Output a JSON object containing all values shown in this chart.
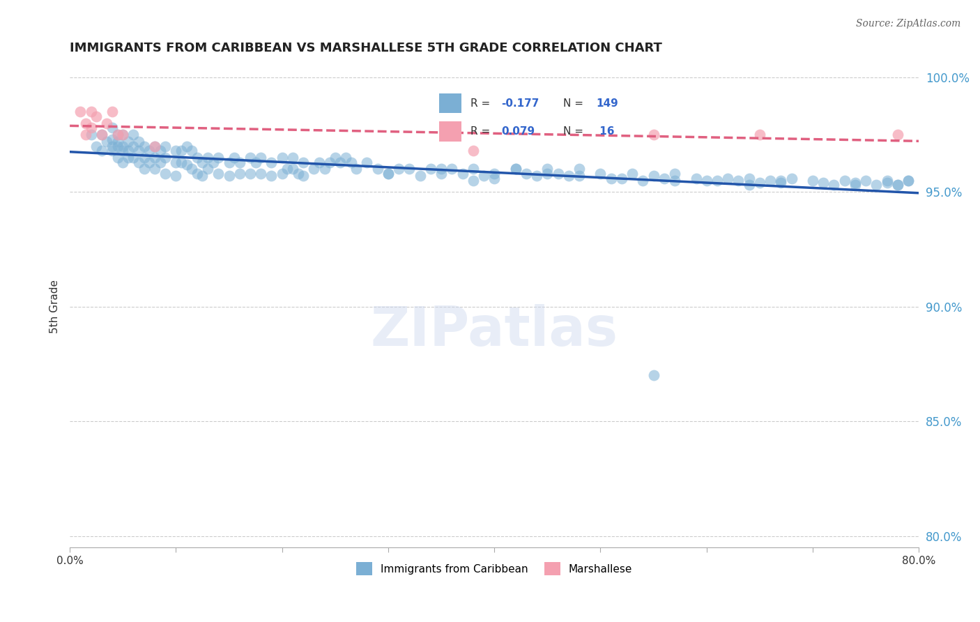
{
  "title": "IMMIGRANTS FROM CARIBBEAN VS MARSHALLESE 5TH GRADE CORRELATION CHART",
  "source_text": "Source: ZipAtlas.com",
  "ylabel": "5th Grade",
  "xlim": [
    0.0,
    0.8
  ],
  "ylim": [
    0.795,
    1.005
  ],
  "xticks": [
    0.0,
    0.1,
    0.2,
    0.3,
    0.4,
    0.5,
    0.6,
    0.7,
    0.8
  ],
  "xticklabels": [
    "0.0%",
    "",
    "",
    "",
    "",
    "",
    "",
    "",
    "80.0%"
  ],
  "yticks": [
    0.8,
    0.85,
    0.9,
    0.95,
    1.0
  ],
  "yticklabels": [
    "80.0%",
    "85.0%",
    "90.0%",
    "95.0%",
    "100.0%"
  ],
  "grid_color": "#cccccc",
  "background_color": "#ffffff",
  "blue_color": "#7bafd4",
  "blue_line_color": "#2255aa",
  "pink_color": "#f4a0b0",
  "pink_line_color": "#e06080",
  "blue_R": -0.177,
  "blue_N": 149,
  "pink_R": 0.079,
  "pink_N": 16,
  "blue_scatter_x": [
    0.02,
    0.025,
    0.03,
    0.03,
    0.035,
    0.04,
    0.04,
    0.04,
    0.04,
    0.045,
    0.045,
    0.045,
    0.045,
    0.05,
    0.05,
    0.05,
    0.05,
    0.055,
    0.055,
    0.055,
    0.06,
    0.06,
    0.06,
    0.065,
    0.065,
    0.065,
    0.07,
    0.07,
    0.07,
    0.075,
    0.075,
    0.08,
    0.08,
    0.08,
    0.085,
    0.085,
    0.09,
    0.09,
    0.09,
    0.1,
    0.1,
    0.1,
    0.105,
    0.105,
    0.11,
    0.11,
    0.115,
    0.115,
    0.12,
    0.12,
    0.125,
    0.125,
    0.13,
    0.13,
    0.135,
    0.14,
    0.14,
    0.15,
    0.15,
    0.155,
    0.16,
    0.16,
    0.17,
    0.17,
    0.175,
    0.18,
    0.18,
    0.19,
    0.19,
    0.2,
    0.2,
    0.205,
    0.21,
    0.21,
    0.215,
    0.22,
    0.22,
    0.23,
    0.235,
    0.24,
    0.245,
    0.25,
    0.255,
    0.26,
    0.265,
    0.27,
    0.28,
    0.29,
    0.3,
    0.31,
    0.32,
    0.33,
    0.34,
    0.35,
    0.36,
    0.37,
    0.38,
    0.39,
    0.4,
    0.42,
    0.43,
    0.44,
    0.45,
    0.46,
    0.47,
    0.48,
    0.5,
    0.52,
    0.53,
    0.54,
    0.55,
    0.56,
    0.57,
    0.59,
    0.6,
    0.62,
    0.63,
    0.64,
    0.65,
    0.66,
    0.67,
    0.68,
    0.7,
    0.72,
    0.73,
    0.74,
    0.75,
    0.76,
    0.77,
    0.78,
    0.79,
    0.55,
    0.38,
    0.42,
    0.45,
    0.48,
    0.51,
    0.57,
    0.61,
    0.64,
    0.67,
    0.71,
    0.74,
    0.77,
    0.78,
    0.79,
    0.3,
    0.35,
    0.4
  ],
  "blue_scatter_y": [
    0.975,
    0.97,
    0.975,
    0.968,
    0.972,
    0.968,
    0.973,
    0.97,
    0.978,
    0.975,
    0.972,
    0.97,
    0.965,
    0.975,
    0.97,
    0.968,
    0.963,
    0.972,
    0.968,
    0.965,
    0.975,
    0.97,
    0.965,
    0.972,
    0.968,
    0.963,
    0.97,
    0.965,
    0.96,
    0.968,
    0.963,
    0.97,
    0.965,
    0.96,
    0.968,
    0.963,
    0.97,
    0.965,
    0.958,
    0.968,
    0.963,
    0.957,
    0.968,
    0.963,
    0.97,
    0.962,
    0.968,
    0.96,
    0.965,
    0.958,
    0.963,
    0.957,
    0.965,
    0.96,
    0.963,
    0.965,
    0.958,
    0.963,
    0.957,
    0.965,
    0.963,
    0.958,
    0.965,
    0.958,
    0.963,
    0.965,
    0.958,
    0.963,
    0.957,
    0.965,
    0.958,
    0.96,
    0.965,
    0.96,
    0.958,
    0.963,
    0.957,
    0.96,
    0.963,
    0.96,
    0.963,
    0.965,
    0.963,
    0.965,
    0.963,
    0.96,
    0.963,
    0.96,
    0.958,
    0.96,
    0.96,
    0.957,
    0.96,
    0.958,
    0.96,
    0.958,
    0.96,
    0.957,
    0.958,
    0.96,
    0.958,
    0.957,
    0.96,
    0.958,
    0.957,
    0.96,
    0.958,
    0.956,
    0.958,
    0.955,
    0.957,
    0.956,
    0.958,
    0.956,
    0.955,
    0.956,
    0.955,
    0.956,
    0.954,
    0.955,
    0.954,
    0.956,
    0.955,
    0.953,
    0.955,
    0.954,
    0.955,
    0.953,
    0.954,
    0.953,
    0.955,
    0.87,
    0.955,
    0.96,
    0.958,
    0.957,
    0.956,
    0.955,
    0.955,
    0.953,
    0.955,
    0.954,
    0.953,
    0.955,
    0.953,
    0.955,
    0.958,
    0.96,
    0.956
  ],
  "pink_scatter_x": [
    0.01,
    0.015,
    0.015,
    0.02,
    0.02,
    0.025,
    0.03,
    0.035,
    0.04,
    0.045,
    0.05,
    0.08,
    0.38,
    0.55,
    0.65,
    0.78
  ],
  "pink_scatter_y": [
    0.985,
    0.98,
    0.975,
    0.985,
    0.978,
    0.983,
    0.975,
    0.98,
    0.985,
    0.975,
    0.975,
    0.97,
    0.968,
    0.975,
    0.975,
    0.975
  ],
  "watermark_text": "ZIPatlas",
  "legend_label_blue": "Immigrants from Caribbean",
  "legend_label_pink": "Marshallese"
}
